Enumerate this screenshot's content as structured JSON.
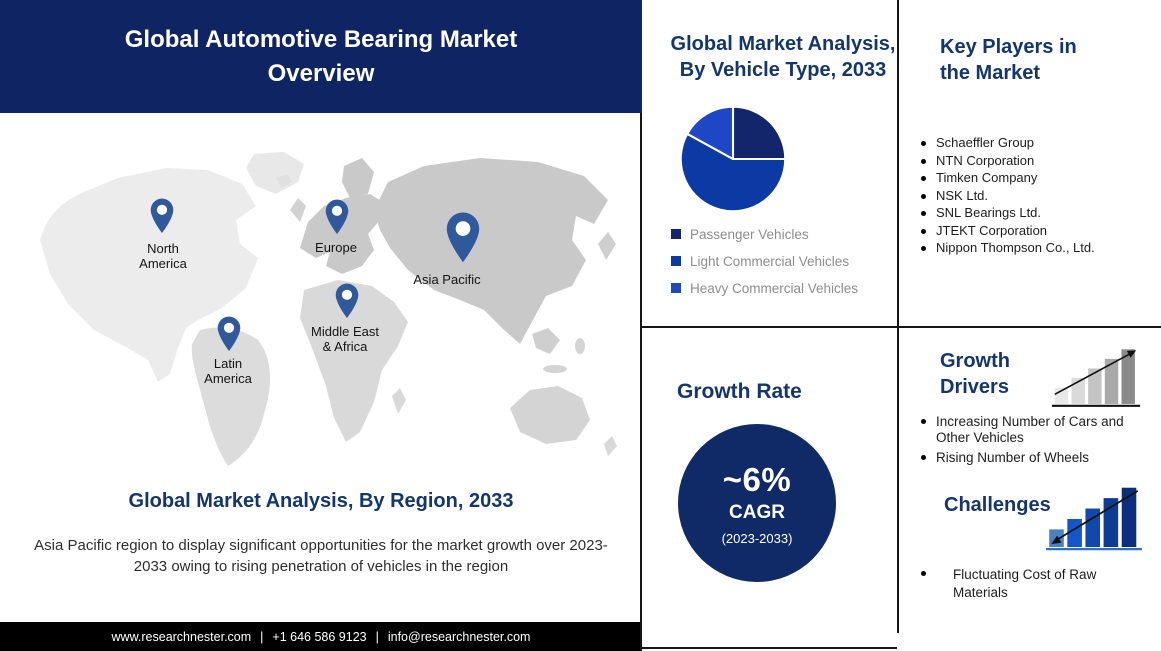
{
  "colors": {
    "banner_navy": "#0e2463",
    "heading_navy": "#14366f",
    "circle_navy": "#102a68",
    "pin_blue": "#30599c",
    "legend_text_gray": "#8c8c8c",
    "footer_bg": "#000000"
  },
  "header": {
    "title": "Global Automotive Bearing Market Overview"
  },
  "map": {
    "pins": [
      {
        "id": "north-america",
        "label": "North America",
        "label_lines": [
          "North",
          "America"
        ]
      },
      {
        "id": "europe",
        "label": "Europe",
        "label_lines": [
          "Europe"
        ]
      },
      {
        "id": "asia-pacific",
        "label": "Asia Pacific",
        "label_lines": [
          "Asia Pacific"
        ]
      },
      {
        "id": "middle-east-africa",
        "label": "Middle East & Africa",
        "label_lines": [
          "Middle East",
          "& Africa"
        ]
      },
      {
        "id": "latin-america",
        "label": "Latin America",
        "label_lines": [
          "Latin",
          "America"
        ]
      }
    ]
  },
  "region_section": {
    "heading": "Global Market Analysis, By Region, 2033",
    "description": "Asia Pacific region to display significant opportunities for the market growth over 2023-2033 owing to rising penetration of vehicles in the region"
  },
  "footer": {
    "website": "www.researchnester.com",
    "separator": "|",
    "phone": "+1 646 586 9123",
    "email": "info@researchnester.com"
  },
  "vehicle_panel": {
    "heading": "Global Market Analysis, By Vehicle Type, 2033"
  },
  "chart_data": {
    "type": "pie",
    "title": "Global Market Analysis, By Vehicle Type, 2033",
    "labels": [
      "Passenger Vehicles",
      "Light Commercial Vehicles",
      "Heavy Commercial Vehicles"
    ],
    "values": [
      25,
      58,
      17
    ],
    "unit": "percent (estimated from slice angles, no numeric labels shown)",
    "colors": [
      "#13266b",
      "#0c3aa4",
      "#1e47c6"
    ],
    "start_angle_deg": 0,
    "direction": "clockwise",
    "legend_position": "bottom-left"
  },
  "growth_rate": {
    "heading": "Growth Rate",
    "value": "~6%",
    "label": "CAGR",
    "period": "(2023-2033)"
  },
  "key_players": {
    "heading": "Key Players in the Market",
    "items": [
      "Schaeffler Group",
      "NTN Corporation",
      "Timken Company",
      "NSK Ltd.",
      "SNL Bearings Ltd.",
      "JTEKT Corporation",
      "Nippon Thompson Co., Ltd."
    ]
  },
  "growth_drivers": {
    "heading": "Growth Drivers",
    "items": [
      "Increasing Number of Cars and Other Vehicles",
      "Rising Number of Wheels"
    ]
  },
  "challenges": {
    "heading": "Challenges",
    "items": [
      "Fluctuating Cost of Raw Materials"
    ]
  },
  "icons": {
    "growth_drivers_bars": {
      "name": "ascending-bar-chart-icon",
      "bar_colors": [
        "#e9e9e9",
        "#dadada",
        "#c4c4c4",
        "#a9a9a9",
        "#8a8a8a"
      ],
      "baseline_color": "#111111",
      "arrow_direction": "up-right"
    },
    "challenges_bars": {
      "name": "ascending-bar-chart-icon",
      "bar_colors": [
        "#4a80c4",
        "#1557cb",
        "#1148ab",
        "#0e3c95",
        "#0b2f7c"
      ],
      "baseline_color": "#2e74b5",
      "arrow_direction": "down-left"
    }
  }
}
